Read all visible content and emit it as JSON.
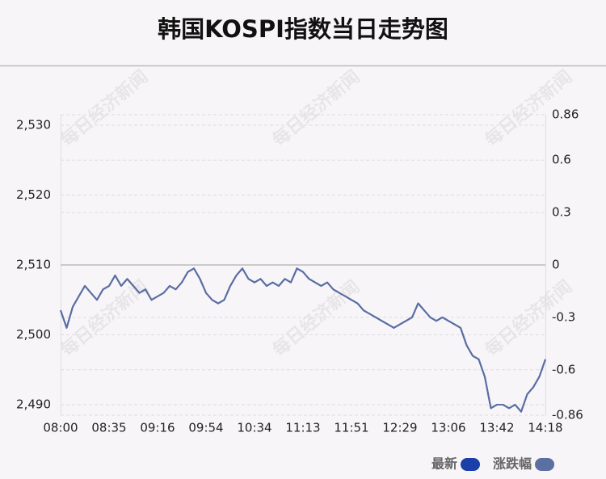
{
  "chart_data": {
    "type": "line",
    "title": "韩国KOSPI指数当日走势图",
    "watermark": "每日经济新闻",
    "categories": [
      "08:00",
      null,
      null,
      null,
      null,
      null,
      null,
      null,
      "08:35",
      null,
      null,
      null,
      null,
      null,
      null,
      null,
      "09:16",
      null,
      null,
      null,
      null,
      null,
      null,
      null,
      "09:54",
      null,
      null,
      null,
      null,
      null,
      null,
      null,
      "10:34",
      null,
      null,
      null,
      null,
      null,
      null,
      null,
      "11:13",
      null,
      null,
      null,
      null,
      null,
      null,
      null,
      "11:51",
      null,
      null,
      null,
      null,
      null,
      null,
      null,
      "12:29",
      null,
      null,
      null,
      null,
      null,
      null,
      null,
      "13:06",
      null,
      null,
      null,
      null,
      null,
      null,
      null,
      "13:42",
      null,
      null,
      null,
      null,
      null,
      null,
      null,
      "14:18"
    ],
    "series": [
      {
        "name": "最新",
        "color": "#1a3fa8",
        "values": [
          2503.5,
          2501,
          2504,
          2505.5,
          2507,
          2506,
          2505,
          2506.5,
          2507,
          2508.5,
          2507,
          2508,
          2507,
          2506,
          2506.5,
          2505,
          2505.5,
          2506,
          2507,
          2506.5,
          2507.5,
          2509,
          2509.5,
          2508,
          2506,
          2505,
          2504.5,
          2505,
          2507,
          2508.5,
          2509.5,
          2508,
          2507.5,
          2508,
          2507,
          2507.5,
          2507,
          2508,
          2507.5,
          2509.5,
          2509,
          2508,
          2507.5,
          2507,
          2507.5,
          2506.5,
          2506,
          2505.5,
          2505,
          2504.5,
          2503.5,
          2503,
          2502.5,
          2502,
          2501.5,
          2501,
          2501.5,
          2502,
          2502.5,
          2504.5,
          2503.5,
          2502.5,
          2502,
          2502.5,
          2502,
          2501.5,
          2501,
          2498.5,
          2497,
          2496.5,
          2494,
          2489.5,
          2490,
          2490,
          2489.5,
          2490,
          2489,
          2491.5,
          2492.5,
          2494,
          2496.5
        ]
      },
      {
        "name": "涨跌幅",
        "color": "#5b6fa0",
        "axis": "y2",
        "values": [
          -0.26,
          -0.36,
          -0.24,
          -0.18,
          -0.12,
          -0.16,
          -0.2,
          -0.14,
          -0.12,
          -0.06,
          -0.12,
          -0.08,
          -0.12,
          -0.16,
          -0.14,
          -0.2,
          -0.18,
          -0.16,
          -0.12,
          -0.14,
          -0.1,
          -0.04,
          -0.02,
          -0.08,
          -0.16,
          -0.2,
          -0.22,
          -0.2,
          -0.12,
          -0.06,
          -0.02,
          -0.08,
          -0.1,
          -0.08,
          -0.12,
          -0.1,
          -0.12,
          -0.08,
          -0.1,
          -0.02,
          -0.04,
          -0.08,
          -0.1,
          -0.12,
          -0.1,
          -0.14,
          -0.16,
          -0.18,
          -0.2,
          -0.22,
          -0.26,
          -0.28,
          -0.3,
          -0.32,
          -0.34,
          -0.36,
          -0.34,
          -0.32,
          -0.3,
          -0.22,
          -0.26,
          -0.3,
          -0.32,
          -0.3,
          -0.32,
          -0.34,
          -0.36,
          -0.46,
          -0.52,
          -0.54,
          -0.64,
          -0.82,
          -0.8,
          -0.8,
          -0.82,
          -0.8,
          -0.84,
          -0.74,
          -0.7,
          -0.64,
          -0.54
        ]
      }
    ],
    "ylim": [
      2488.5,
      2531.5
    ],
    "yticks": [
      {
        "value": 2490,
        "label": "2,490"
      },
      {
        "value": 2500,
        "label": "2,500"
      },
      {
        "value": 2510,
        "label": "2,510"
      },
      {
        "value": 2520,
        "label": "2,520"
      },
      {
        "value": 2530,
        "label": "2,530"
      }
    ],
    "y2lim": [
      -0.86,
      0.86
    ],
    "y2ticks": [
      -0.86,
      -0.6,
      -0.3,
      0,
      0.3,
      0.6,
      0.86
    ],
    "grid": true,
    "legend": "bottom-right"
  }
}
